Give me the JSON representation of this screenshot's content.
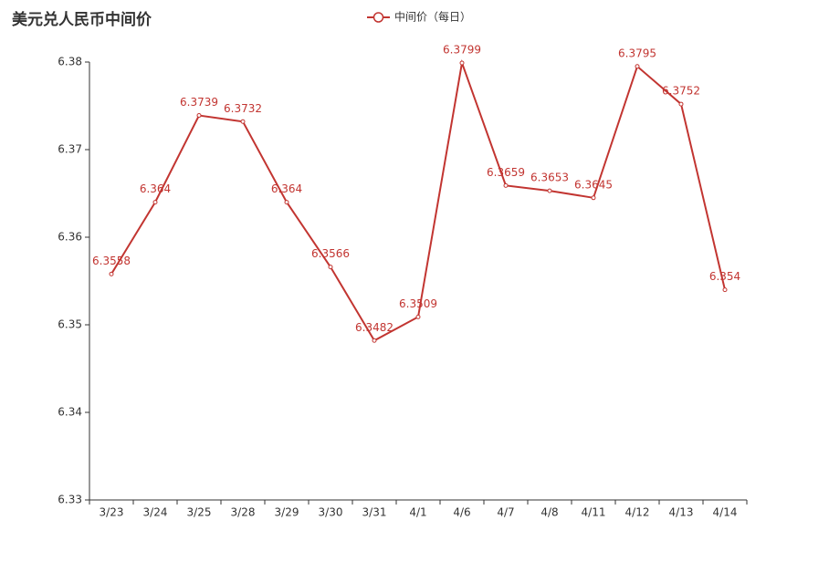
{
  "chart_data": {
    "type": "line",
    "title": "美元兑人民币中间价",
    "categories": [
      "3/23",
      "3/24",
      "3/25",
      "3/28",
      "3/29",
      "3/30",
      "3/31",
      "4/1",
      "4/6",
      "4/7",
      "4/8",
      "4/11",
      "4/12",
      "4/13",
      "4/14"
    ],
    "series": [
      {
        "name": "中间价（每日）",
        "color": "#c23531",
        "values": [
          6.3558,
          6.364,
          6.3739,
          6.3732,
          6.364,
          6.3566,
          6.3482,
          6.3509,
          6.3799,
          6.3659,
          6.3653,
          6.3645,
          6.3795,
          6.3752,
          6.354
        ]
      }
    ],
    "ylim": [
      6.33,
      6.38
    ],
    "yticks": [
      6.33,
      6.34,
      6.35,
      6.36,
      6.37,
      6.38
    ],
    "grid": false,
    "legend": "top"
  }
}
